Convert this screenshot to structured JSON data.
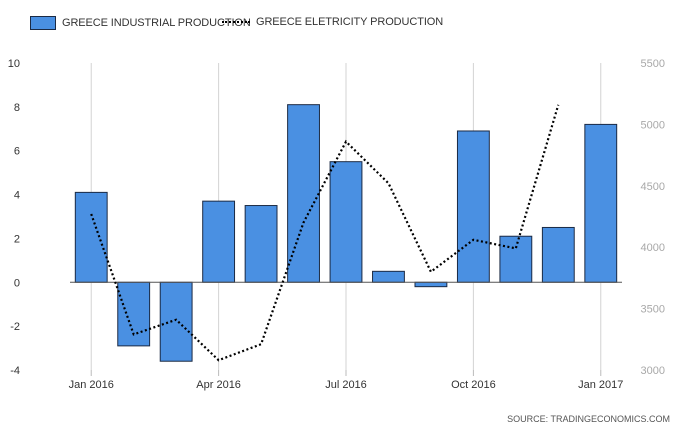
{
  "chart_data": {
    "type": "bar",
    "categories": [
      "Jan 2016",
      "Feb 2016",
      "Mar 2016",
      "Apr 2016",
      "May 2016",
      "Jun 2016",
      "Jul 2016",
      "Aug 2016",
      "Sep 2016",
      "Oct 2016",
      "Nov 2016",
      "Dec 2016",
      "Jan 2017"
    ],
    "x_tick_labels": [
      "Jan 2016",
      "Apr 2016",
      "Jul 2016",
      "Oct 2016",
      "Jan 2017"
    ],
    "x_tick_indices": [
      0,
      3,
      6,
      9,
      12
    ],
    "series": [
      {
        "name": "GREECE INDUSTRIAL PRODUCTION",
        "type": "bar",
        "axis": "left",
        "values": [
          4.1,
          -2.9,
          -3.6,
          3.7,
          3.5,
          8.1,
          5.5,
          0.5,
          -0.2,
          6.9,
          2.1,
          2.5,
          7.2
        ]
      },
      {
        "name": "GREECE ELETRICITY PRODUCTION",
        "type": "line",
        "style": "dotted",
        "axis": "right",
        "values": [
          4270,
          3290,
          3410,
          3080,
          3210,
          4200,
          4860,
          4520,
          3800,
          4060,
          3990,
          5160,
          null
        ]
      }
    ],
    "left_axis": {
      "ylim": [
        -4,
        10
      ],
      "ticks": [
        -4,
        -2,
        0,
        2,
        4,
        6,
        8,
        10
      ]
    },
    "right_axis": {
      "ylim": [
        3000,
        5500
      ],
      "ticks": [
        3000,
        3500,
        4000,
        4500,
        5000,
        5500
      ]
    },
    "grid": "vertical",
    "legend": "top-left",
    "source": "SOURCE: TRADINGECONOMICS.COM",
    "colors": {
      "bar_fill": "#4a90e2",
      "bar_border": "#1b2a44",
      "line": "#000000",
      "grid": "#d3d3d3",
      "axis_text_left": "#333333",
      "axis_text_right": "#a8a8a8"
    }
  }
}
